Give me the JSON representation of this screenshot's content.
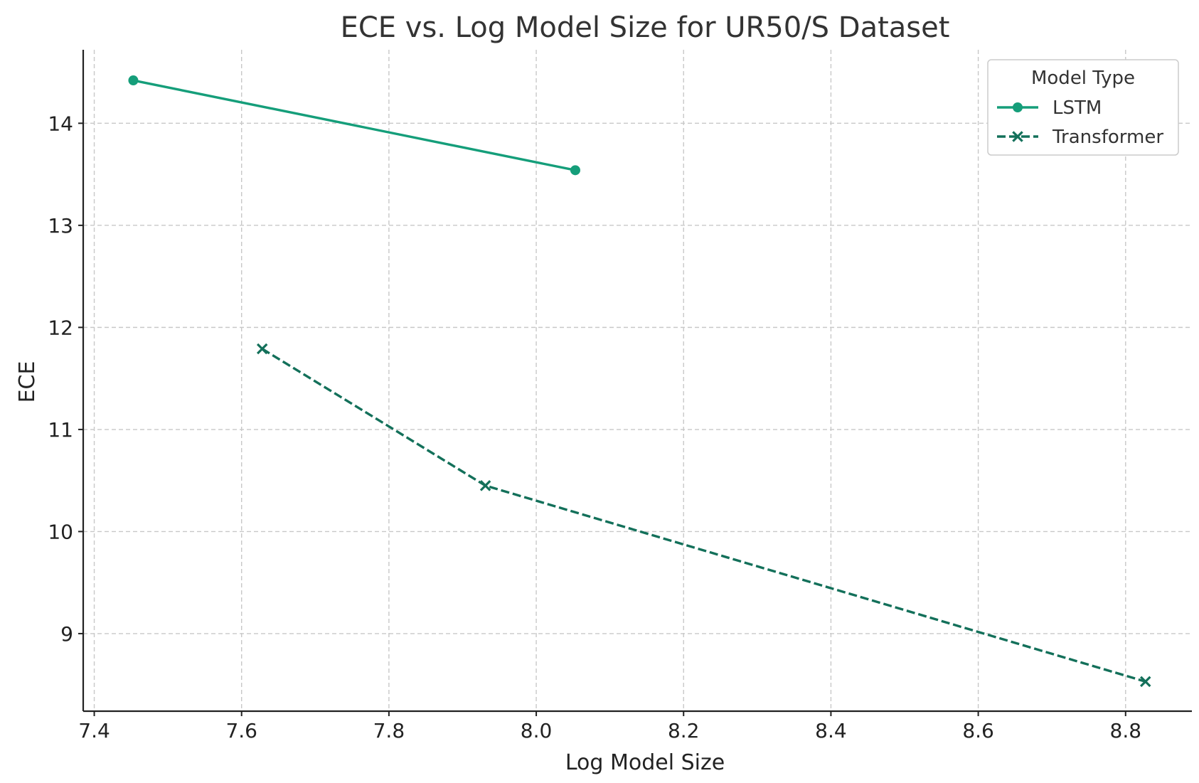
{
  "chart_data": {
    "type": "line",
    "title": "ECE vs. Log Model Size for UR50/S Dataset",
    "xlabel": "Log Model Size",
    "ylabel": "ECE",
    "xlim": [
      7.385,
      8.89
    ],
    "ylim": [
      8.24,
      14.72
    ],
    "xticks": [
      7.4,
      7.6,
      7.8,
      8.0,
      8.2,
      8.4,
      8.6,
      8.8
    ],
    "xtick_labels": [
      "7.4",
      "7.6",
      "7.8",
      "8.0",
      "8.2",
      "8.4",
      "8.6",
      "8.8"
    ],
    "yticks": [
      9,
      10,
      11,
      12,
      13,
      14
    ],
    "ytick_labels": [
      "9",
      "10",
      "11",
      "12",
      "13",
      "14"
    ],
    "grid": true,
    "legend": {
      "title": "Model Type",
      "placement": "top-right"
    },
    "series": [
      {
        "name": "LSTM",
        "color": "#159e7a",
        "line_style": "solid",
        "marker": "circle",
        "x": [
          7.453,
          8.053
        ],
        "y": [
          14.42,
          13.54
        ]
      },
      {
        "name": "Transformer",
        "color": "#13705a",
        "line_style": "dashed",
        "marker": "x",
        "x": [
          7.628,
          7.931,
          8.827
        ],
        "y": [
          11.79,
          10.45,
          8.53
        ]
      }
    ]
  }
}
